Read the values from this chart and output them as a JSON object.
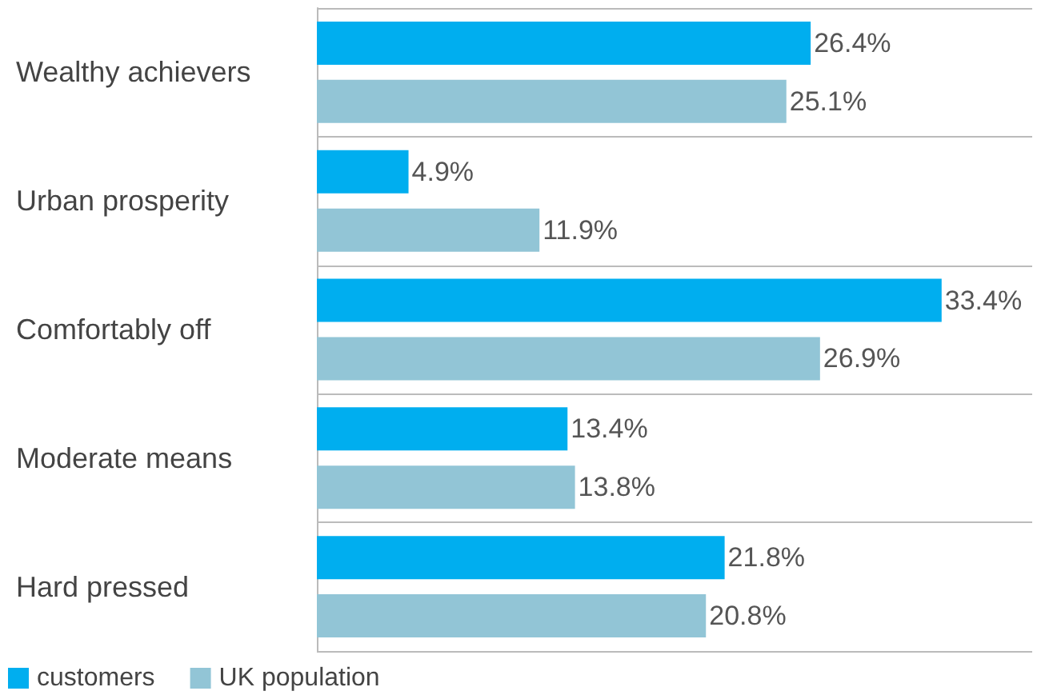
{
  "chart_data": {
    "type": "bar",
    "orientation": "horizontal",
    "categories": [
      "Wealthy achievers",
      "Urban prosperity",
      "Comfortably off",
      "Moderate means",
      "Hard pressed"
    ],
    "series": [
      {
        "name": "customers",
        "color": "#00aeef",
        "values": [
          26.4,
          4.9,
          33.4,
          13.4,
          21.8
        ],
        "value_labels": [
          "26.4%",
          "4.9%",
          "33.4%",
          "13.4%",
          "21.8%"
        ]
      },
      {
        "name": "UK population",
        "color": "#92c5d6",
        "values": [
          25.1,
          11.9,
          26.9,
          13.8,
          20.8
        ],
        "value_labels": [
          "25.1%",
          "11.9%",
          "26.9%",
          "13.8%",
          "20.8%"
        ]
      }
    ],
    "grid": "y",
    "legend": "bottom left",
    "tick_labels": "y"
  }
}
